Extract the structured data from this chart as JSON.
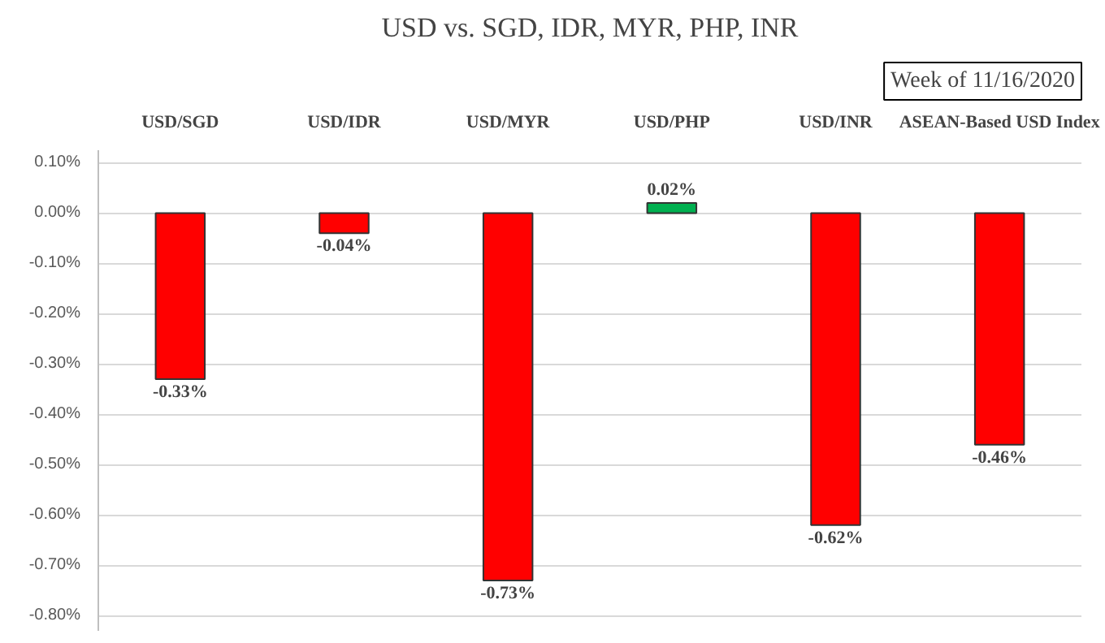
{
  "chart_data": {
    "type": "bar",
    "title": "USD vs. SGD, IDR, MYR, PHP, INR",
    "subtitle": "Week of 11/16/2020",
    "categories": [
      "USD/SGD",
      "USD/IDR",
      "USD/MYR",
      "USD/PHP",
      "USD/INR",
      "ASEAN-Based USD Index"
    ],
    "values": [
      -0.33,
      -0.04,
      -0.73,
      0.02,
      -0.62,
      -0.46
    ],
    "colors": [
      "#ff0000",
      "#ff0000",
      "#ff0000",
      "#00b050",
      "#ff0000",
      "#ff0000"
    ],
    "value_labels": [
      "-0.33%",
      "-0.04%",
      "-0.73%",
      "0.02%",
      "-0.62%",
      "-0.46%"
    ],
    "ylim": [
      -0.83,
      0.125
    ],
    "yticks": [
      {
        "value": 0.1,
        "label": "0.10%"
      },
      {
        "value": 0.0,
        "label": "0.00%"
      },
      {
        "value": -0.1,
        "label": "-0.10%"
      },
      {
        "value": -0.2,
        "label": "-0.20%"
      },
      {
        "value": -0.3,
        "label": "-0.30%"
      },
      {
        "value": -0.4,
        "label": "-0.40%"
      },
      {
        "value": -0.5,
        "label": "-0.50%"
      },
      {
        "value": -0.6,
        "label": "-0.60%"
      },
      {
        "value": -0.7,
        "label": "-0.70%"
      },
      {
        "value": -0.8,
        "label": "-0.80%"
      }
    ],
    "grid": "y"
  }
}
